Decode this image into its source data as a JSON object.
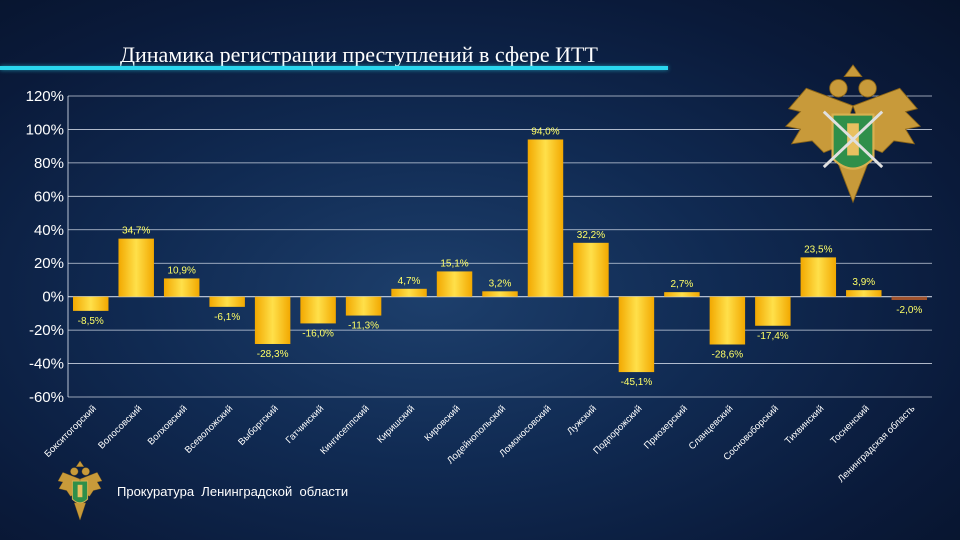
{
  "title": "Динамика регистрации преступлений в сфере ИТТ",
  "footer": "Прокуратура  Ленинградской  области",
  "colors": {
    "accent": "#2ad6ee",
    "bar": "#ffcc00",
    "bar_negative_last": "#a0522d",
    "label": "#ffff66"
  },
  "icons": {
    "big": "double-headed-eagle-emblem",
    "small": "double-headed-eagle-emblem"
  },
  "chart_data": {
    "type": "bar",
    "title": "Динамика регистрации преступлений в сфере ИТТ",
    "categories": [
      "Бокситогорский",
      "Волосовский",
      "Волховский",
      "Всеволожский",
      "Выборгский",
      "Гатчинский",
      "Кингисеппский",
      "Киришский",
      "Кировский",
      "Лодейнопольский",
      "Ломоносовский",
      "Лужский",
      "Подпорожский",
      "Приозерский",
      "Сланцевский",
      "Сосновоборский",
      "Тихвинский",
      "Тосненский",
      "Ленинградская область"
    ],
    "series": [
      {
        "values": [
          -8.5,
          34.7,
          10.9,
          -6.1,
          -28.3,
          -16.0,
          -11.3,
          4.7,
          15.1,
          3.2,
          94.0,
          32.2,
          -45.1,
          2.7,
          -28.6,
          -17.4,
          23.5,
          3.9,
          -2.0
        ]
      }
    ],
    "data_labels": [
      "-8,5%",
      "34,7%",
      "10,9%",
      "-6,1%",
      "-28,3%",
      "-16,0%",
      "-11,3%",
      "4,7%",
      "15,1%",
      "3,2%",
      "94,0%",
      "32,2%",
      "-45,1%",
      "2,7%",
      "-28,6%",
      "-17,4%",
      "23,5%",
      "3,9%",
      "-2,0%"
    ],
    "yticks": [
      "120%",
      "100%",
      "80%",
      "60%",
      "40%",
      "20%",
      "0%",
      "-20%",
      "-40%",
      "-60%"
    ],
    "ylim": [
      -60,
      120
    ],
    "grid": true,
    "legend": "none"
  }
}
